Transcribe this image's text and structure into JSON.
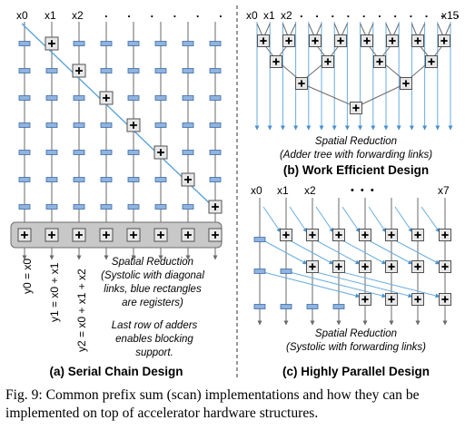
{
  "colors": {
    "wire": "#6a6a6a",
    "diag": "#5aa3d8",
    "link": "#6aaee0",
    "reg_fill": "#8fb4de",
    "reg_stroke": "#3d6aa8",
    "adder_fill": "#e8e8e8",
    "adder_stroke": "#505050",
    "band_fill": "#c8c8c8",
    "band_stroke": "#6d6d6d",
    "text": "#000000"
  },
  "icons": {
    "adder": "plus-box-icon",
    "register": "register-rect-icon"
  },
  "panel_a": {
    "inputs": [
      "x0",
      "x1",
      "x2"
    ],
    "ellipsis": ". . . . . .",
    "outputs": [
      "y0 = x0",
      "y1 = x0 + x1",
      "y2 = x0 + x1 + x2"
    ],
    "note_lines": [
      "Spatial Reduction",
      "(Systolic with diagonal",
      "links, blue rectangles",
      "are registers)"
    ],
    "note2_lines": [
      "Last row of adders",
      "enables blocking",
      "support."
    ],
    "title": "(a) Serial Chain Design"
  },
  "panel_b": {
    "inputs": [
      "x0",
      "x1",
      "x2"
    ],
    "ellipsis": ". . . . . . . . . . .",
    "last_input": "x15",
    "note_lines": [
      "Spatial Reduction",
      "(Adder tree with forwarding links)"
    ],
    "title": "(b) Work Efficient Design"
  },
  "panel_c": {
    "inputs": [
      "x0",
      "x1",
      "x2"
    ],
    "ellipsis": "• • •",
    "last_input": "x7",
    "note_lines": [
      "Spatial Reduction",
      "(Systolic with forwarding links)"
    ],
    "title": "(c) Highly Parallel Design"
  },
  "caption": "Fig. 9: Common prefix sum (scan) implementations and how they can be implemented on top of accelerator hardware structures."
}
